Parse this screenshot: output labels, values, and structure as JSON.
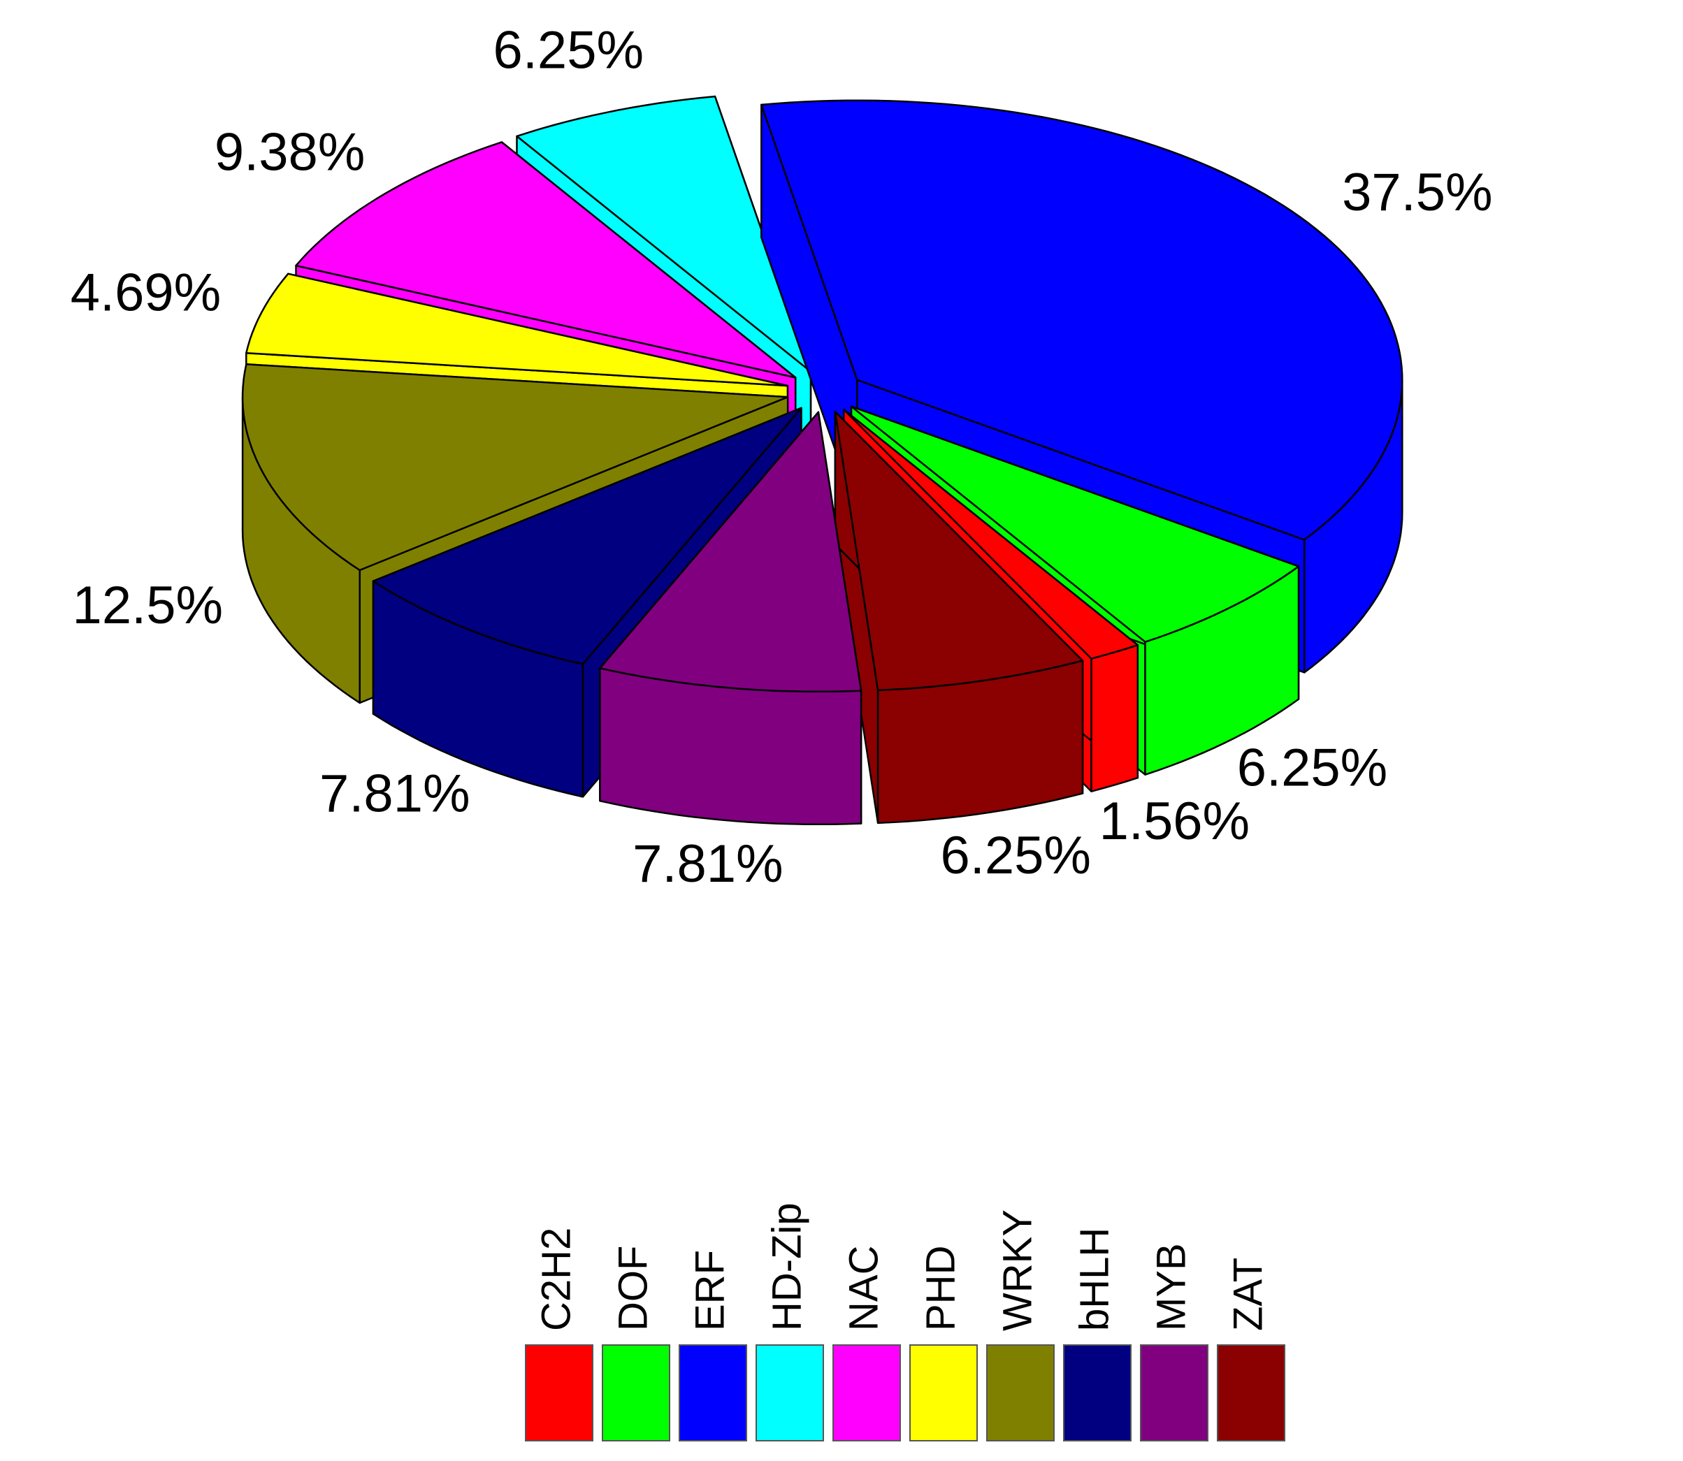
{
  "chart_data": {
    "type": "pie",
    "categories": [
      "C2H2",
      "DOF",
      "ERF",
      "HD-Zip",
      "NAC",
      "PHD",
      "WRKY",
      "bHLH",
      "MYB",
      "ZAT"
    ],
    "values": [
      1.56,
      6.25,
      37.5,
      6.25,
      9.38,
      4.69,
      12.5,
      7.81,
      7.81,
      6.25
    ],
    "value_labels": [
      "1.56%",
      "6.25%",
      "37.5%",
      "6.25%",
      "9.38%",
      "4.69%",
      "12.5%",
      "7.81%",
      "7.81%",
      "6.25%"
    ],
    "colors": [
      "#ff0000",
      "#00ff00",
      "#0000ff",
      "#00ffff",
      "#ff00ff",
      "#ffff00",
      "#808000",
      "#000080",
      "#800080",
      "#8b0000"
    ],
    "legend": "bottom"
  }
}
